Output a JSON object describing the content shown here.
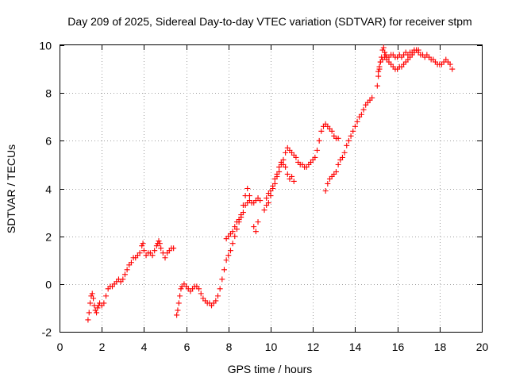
{
  "chart_data": {
    "type": "scatter",
    "title": "Day 209 of 2025, Sidereal Day-to-day VTEC variation (SDTVAR) for receiver stpm",
    "xlabel": "GPS time / hours",
    "ylabel": "SDTVAR / TECUs",
    "xlim": [
      0,
      20
    ],
    "ylim": [
      -2,
      10
    ],
    "xticks": [
      0,
      2,
      4,
      6,
      8,
      10,
      12,
      14,
      16,
      18,
      20
    ],
    "yticks": [
      -2,
      0,
      2,
      4,
      6,
      8,
      10
    ],
    "grid": true,
    "marker": "+",
    "color": "#ff0000",
    "series": [
      {
        "name": "SDTVAR segment 1",
        "points": [
          [
            1.35,
            -1.5
          ],
          [
            1.4,
            -1.2
          ],
          [
            1.45,
            -0.8
          ],
          [
            1.5,
            -0.5
          ],
          [
            1.55,
            -0.4
          ],
          [
            1.6,
            -0.6
          ],
          [
            1.65,
            -0.9
          ],
          [
            1.7,
            -1.1
          ],
          [
            1.75,
            -1.2
          ],
          [
            1.8,
            -1.0
          ],
          [
            1.85,
            -0.9
          ],
          [
            1.9,
            -0.8
          ],
          [
            2.0,
            -0.9
          ],
          [
            2.1,
            -0.8
          ],
          [
            2.2,
            -0.5
          ],
          [
            2.3,
            -0.2
          ],
          [
            2.4,
            -0.1
          ],
          [
            2.5,
            -0.1
          ],
          [
            2.6,
            0.0
          ],
          [
            2.7,
            0.1
          ],
          [
            2.8,
            0.2
          ],
          [
            2.9,
            0.1
          ],
          [
            3.0,
            0.2
          ],
          [
            3.1,
            0.4
          ],
          [
            3.2,
            0.6
          ],
          [
            3.3,
            0.8
          ],
          [
            3.4,
            0.9
          ],
          [
            3.5,
            1.1
          ],
          [
            3.6,
            1.1
          ],
          [
            3.7,
            1.2
          ],
          [
            3.8,
            1.3
          ],
          [
            3.9,
            1.6
          ],
          [
            3.95,
            1.7
          ],
          [
            4.0,
            1.4
          ],
          [
            4.1,
            1.2
          ],
          [
            4.2,
            1.3
          ],
          [
            4.3,
            1.3
          ],
          [
            4.4,
            1.2
          ],
          [
            4.5,
            1.4
          ],
          [
            4.6,
            1.6
          ],
          [
            4.65,
            1.7
          ],
          [
            4.7,
            1.8
          ],
          [
            4.75,
            1.7
          ],
          [
            4.8,
            1.5
          ],
          [
            4.9,
            1.3
          ],
          [
            5.0,
            1.1
          ],
          [
            5.1,
            1.3
          ],
          [
            5.2,
            1.4
          ],
          [
            5.3,
            1.5
          ],
          [
            5.4,
            1.5
          ]
        ]
      },
      {
        "name": "SDTVAR segment 2",
        "points": [
          [
            5.55,
            -1.3
          ],
          [
            5.6,
            -1.1
          ],
          [
            5.65,
            -0.8
          ],
          [
            5.7,
            -0.5
          ],
          [
            5.75,
            -0.2
          ],
          [
            5.8,
            -0.1
          ],
          [
            5.9,
            0.0
          ],
          [
            6.0,
            -0.1
          ],
          [
            6.1,
            -0.2
          ],
          [
            6.2,
            -0.3
          ],
          [
            6.3,
            -0.2
          ],
          [
            6.4,
            -0.1
          ],
          [
            6.5,
            -0.1
          ],
          [
            6.6,
            -0.2
          ],
          [
            6.7,
            -0.4
          ],
          [
            6.8,
            -0.6
          ],
          [
            6.9,
            -0.7
          ],
          [
            7.0,
            -0.8
          ],
          [
            7.1,
            -0.8
          ],
          [
            7.2,
            -0.9
          ],
          [
            7.3,
            -0.8
          ],
          [
            7.4,
            -0.7
          ],
          [
            7.5,
            -0.5
          ],
          [
            7.6,
            -0.2
          ],
          [
            7.7,
            0.2
          ],
          [
            7.8,
            0.6
          ],
          [
            7.9,
            1.0
          ],
          [
            8.0,
            1.2
          ],
          [
            8.1,
            1.4
          ],
          [
            8.2,
            1.7
          ],
          [
            8.3,
            2.0
          ],
          [
            8.4,
            2.3
          ],
          [
            8.5,
            2.6
          ],
          [
            8.6,
            2.8
          ],
          [
            8.7,
            3.0
          ],
          [
            8.8,
            3.3
          ],
          [
            8.9,
            3.4
          ],
          [
            9.0,
            3.5
          ],
          [
            9.1,
            3.4
          ],
          [
            9.2,
            3.4
          ],
          [
            9.3,
            3.5
          ],
          [
            9.4,
            3.6
          ],
          [
            9.5,
            3.5
          ]
        ]
      },
      {
        "name": "SDTVAR segment 3",
        "points": [
          [
            7.9,
            1.9
          ],
          [
            8.0,
            2.0
          ],
          [
            8.1,
            2.1
          ],
          [
            8.2,
            2.2
          ],
          [
            8.3,
            2.4
          ],
          [
            8.4,
            2.6
          ],
          [
            8.5,
            2.7
          ],
          [
            8.6,
            2.9
          ],
          [
            8.7,
            3.3
          ],
          [
            8.8,
            3.7
          ],
          [
            8.9,
            4.0
          ],
          [
            9.0,
            3.7
          ],
          [
            9.2,
            2.4
          ],
          [
            9.3,
            2.2
          ],
          [
            9.4,
            2.6
          ]
        ]
      },
      {
        "name": "SDTVAR segment 4",
        "points": [
          [
            9.7,
            3.1
          ],
          [
            9.8,
            3.3
          ],
          [
            9.9,
            3.4
          ],
          [
            10.0,
            3.7
          ],
          [
            10.1,
            4.0
          ],
          [
            10.2,
            4.2
          ],
          [
            10.3,
            4.5
          ],
          [
            10.4,
            4.7
          ],
          [
            10.5,
            5.0
          ],
          [
            10.6,
            5.2
          ],
          [
            10.7,
            5.5
          ],
          [
            10.8,
            5.7
          ],
          [
            10.9,
            5.6
          ],
          [
            11.0,
            5.5
          ],
          [
            11.1,
            5.4
          ],
          [
            11.2,
            5.3
          ],
          [
            11.3,
            5.1
          ],
          [
            11.4,
            5.0
          ],
          [
            11.5,
            5.0
          ],
          [
            11.6,
            4.9
          ],
          [
            11.7,
            4.9
          ],
          [
            11.8,
            5.0
          ],
          [
            11.9,
            5.1
          ],
          [
            12.0,
            5.2
          ],
          [
            12.1,
            5.3
          ],
          [
            12.2,
            5.6
          ],
          [
            12.3,
            6.0
          ],
          [
            12.4,
            6.4
          ],
          [
            12.5,
            6.6
          ],
          [
            12.6,
            6.7
          ],
          [
            12.7,
            6.6
          ],
          [
            12.8,
            6.5
          ],
          [
            12.9,
            6.4
          ],
          [
            13.0,
            6.2
          ],
          [
            13.1,
            6.1
          ],
          [
            13.2,
            6.1
          ]
        ]
      },
      {
        "name": "SDTVAR segment 5",
        "points": [
          [
            9.8,
            3.6
          ],
          [
            9.9,
            3.8
          ],
          [
            10.0,
            3.9
          ],
          [
            10.1,
            4.1
          ],
          [
            10.2,
            4.4
          ],
          [
            10.3,
            4.6
          ],
          [
            10.4,
            4.9
          ],
          [
            10.5,
            5.1
          ],
          [
            10.6,
            5.0
          ],
          [
            10.7,
            4.9
          ],
          [
            10.8,
            4.6
          ],
          [
            10.9,
            4.4
          ],
          [
            11.0,
            4.5
          ],
          [
            11.1,
            4.3
          ]
        ]
      },
      {
        "name": "SDTVAR segment 6",
        "points": [
          [
            12.6,
            3.9
          ],
          [
            12.7,
            4.2
          ],
          [
            12.8,
            4.4
          ],
          [
            12.9,
            4.5
          ],
          [
            13.0,
            4.6
          ],
          [
            13.1,
            4.7
          ],
          [
            13.2,
            5.0
          ],
          [
            13.3,
            5.2
          ],
          [
            13.4,
            5.3
          ],
          [
            13.5,
            5.5
          ],
          [
            13.6,
            5.8
          ],
          [
            13.7,
            6.0
          ],
          [
            13.8,
            6.2
          ],
          [
            13.9,
            6.4
          ],
          [
            14.0,
            6.6
          ],
          [
            14.1,
            6.8
          ],
          [
            14.2,
            7.0
          ],
          [
            14.3,
            7.1
          ],
          [
            14.4,
            7.3
          ],
          [
            14.5,
            7.5
          ],
          [
            14.6,
            7.6
          ],
          [
            14.7,
            7.7
          ],
          [
            14.8,
            7.8
          ]
        ]
      },
      {
        "name": "SDTVAR segment 7",
        "points": [
          [
            15.05,
            8.3
          ],
          [
            15.1,
            8.7
          ],
          [
            15.15,
            9.0
          ],
          [
            15.2,
            9.3
          ],
          [
            15.25,
            9.5
          ],
          [
            15.3,
            9.8
          ],
          [
            15.35,
            9.9
          ],
          [
            15.4,
            9.7
          ],
          [
            15.45,
            9.6
          ],
          [
            15.5,
            9.5
          ],
          [
            15.6,
            9.3
          ],
          [
            15.7,
            9.2
          ],
          [
            15.8,
            9.1
          ],
          [
            15.9,
            9.0
          ],
          [
            16.0,
            9.0
          ],
          [
            16.1,
            9.1
          ],
          [
            16.2,
            9.1
          ],
          [
            16.3,
            9.2
          ],
          [
            16.4,
            9.3
          ],
          [
            16.5,
            9.4
          ],
          [
            16.6,
            9.5
          ],
          [
            16.7,
            9.6
          ],
          [
            16.8,
            9.7
          ],
          [
            16.9,
            9.8
          ],
          [
            17.0,
            9.7
          ]
        ]
      },
      {
        "name": "SDTVAR segment 8",
        "points": [
          [
            15.1,
            8.9
          ],
          [
            15.15,
            9.1
          ],
          [
            15.2,
            9.3
          ],
          [
            15.3,
            9.4
          ],
          [
            15.4,
            9.5
          ],
          [
            15.5,
            9.4
          ],
          [
            15.6,
            9.5
          ],
          [
            15.7,
            9.6
          ],
          [
            15.8,
            9.6
          ],
          [
            15.9,
            9.5
          ],
          [
            16.0,
            9.5
          ],
          [
            16.1,
            9.6
          ],
          [
            16.2,
            9.5
          ],
          [
            16.3,
            9.6
          ],
          [
            16.4,
            9.7
          ],
          [
            16.5,
            9.6
          ],
          [
            16.6,
            9.7
          ],
          [
            16.7,
            9.7
          ],
          [
            16.8,
            9.8
          ],
          [
            16.9,
            9.8
          ],
          [
            17.0,
            9.8
          ],
          [
            17.1,
            9.6
          ],
          [
            17.2,
            9.6
          ],
          [
            17.3,
            9.5
          ],
          [
            17.4,
            9.6
          ],
          [
            17.5,
            9.5
          ],
          [
            17.6,
            9.4
          ],
          [
            17.7,
            9.4
          ],
          [
            17.8,
            9.3
          ],
          [
            17.9,
            9.2
          ],
          [
            18.0,
            9.2
          ],
          [
            18.1,
            9.2
          ],
          [
            18.2,
            9.3
          ],
          [
            18.3,
            9.4
          ],
          [
            18.4,
            9.3
          ],
          [
            18.5,
            9.2
          ],
          [
            18.6,
            9.0
          ]
        ]
      }
    ]
  }
}
